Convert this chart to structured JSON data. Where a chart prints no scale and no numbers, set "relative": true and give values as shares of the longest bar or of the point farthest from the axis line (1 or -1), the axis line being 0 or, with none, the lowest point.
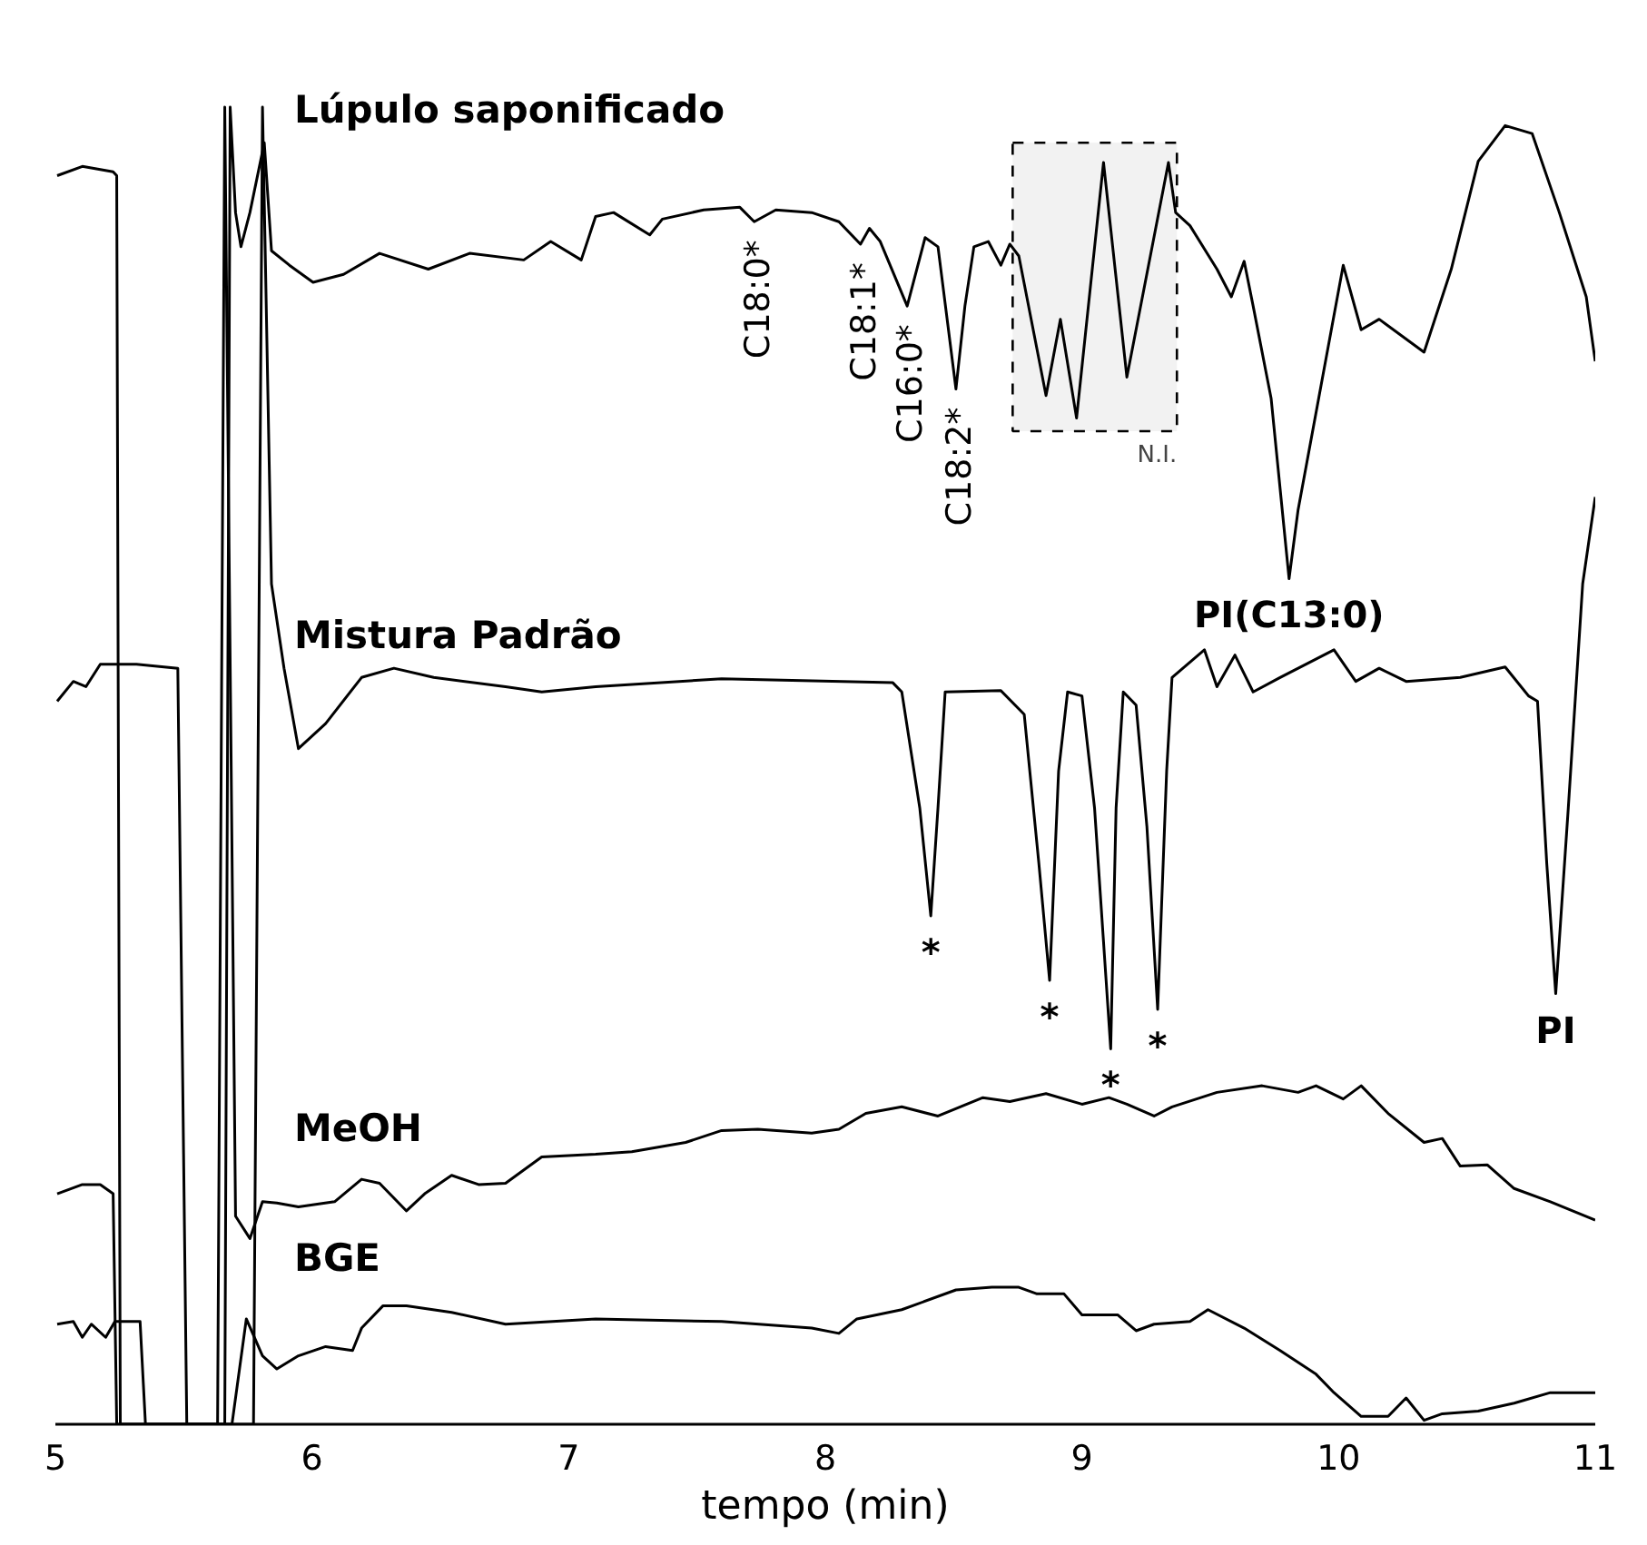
{
  "chart_data": {
    "type": "line",
    "relative": true,
    "xlabel": "tempo (min)",
    "xlim": [
      5,
      11
    ],
    "xticks": [
      5,
      6,
      7,
      8,
      9,
      10,
      11
    ],
    "grid": false,
    "tick_labels": "x",
    "series": [
      {
        "name": "Lúpulo saponificado",
        "color": "#000000",
        "x": [
          5.007,
          5.105,
          5.225,
          5.239,
          5.253,
          5.66,
          5.681,
          5.702,
          5.723,
          5.758,
          5.814,
          5.842,
          5.912,
          6.004,
          6.123,
          6.263,
          6.453,
          6.614,
          6.825,
          6.93,
          7.049,
          7.105,
          7.175,
          7.316,
          7.365,
          7.526,
          7.667,
          7.723,
          7.807,
          7.947,
          8.053,
          8.137,
          8.172,
          8.214,
          8.319,
          8.389,
          8.439,
          8.509,
          8.544,
          8.579,
          8.635,
          8.684,
          8.719,
          8.754,
          8.86,
          8.916,
          8.979,
          9.084,
          9.175,
          9.337,
          9.365,
          9.421,
          9.526,
          9.582,
          9.632,
          9.667,
          9.737,
          9.807,
          9.842,
          10.018,
          10.088,
          10.158,
          10.333,
          10.439,
          10.544,
          10.649,
          10.754,
          10.86,
          10.965,
          11.0
        ],
        "values": [
          0.948,
          0.955,
          0.951,
          0.948,
          0,
          0,
          1.0,
          0.92,
          0.894,
          0.92,
          0.973,
          0.891,
          0.88,
          0.867,
          0.873,
          0.889,
          0.877,
          0.889,
          0.884,
          0.898,
          0.884,
          0.917,
          0.92,
          0.903,
          0.915,
          0.922,
          0.924,
          0.913,
          0.922,
          0.92,
          0.913,
          0.896,
          0.908,
          0.898,
          0.849,
          0.901,
          0.894,
          0.786,
          0.849,
          0.894,
          0.898,
          0.88,
          0.896,
          0.887,
          0.781,
          0.839,
          0.764,
          0.958,
          0.795,
          0.958,
          0.92,
          0.91,
          0.877,
          0.856,
          0.883,
          0.849,
          0.779,
          0.642,
          0.694,
          0.88,
          0.831,
          0.839,
          0.814,
          0.877,
          0.959,
          0.986,
          0.98,
          0.92,
          0.856,
          0.807
        ]
      },
      {
        "name": "Mistura Padrão",
        "color": "#000000",
        "x": [
          5.007,
          5.07,
          5.119,
          5.175,
          5.316,
          5.477,
          5.512,
          5.772,
          5.807,
          5.842,
          5.891,
          5.947,
          6.053,
          6.193,
          6.319,
          6.474,
          6.754,
          6.895,
          7.105,
          7.596,
          8.263,
          8.298,
          8.368,
          8.411,
          8.439,
          8.467,
          8.684,
          8.775,
          8.832,
          8.874,
          8.909,
          8.944,
          9.0,
          9.049,
          9.112,
          9.133,
          9.161,
          9.211,
          9.253,
          9.295,
          9.33,
          9.351,
          9.477,
          9.526,
          9.596,
          9.667,
          9.772,
          9.982,
          10.067,
          10.158,
          10.263,
          10.474,
          10.649,
          10.74,
          10.775,
          10.811,
          10.846,
          10.895,
          10.951,
          11.0
        ],
        "values": [
          0.549,
          0.564,
          0.56,
          0.577,
          0.577,
          0.574,
          0,
          0,
          1.0,
          0.638,
          0.574,
          0.513,
          0.532,
          0.567,
          0.574,
          0.567,
          0.56,
          0.556,
          0.56,
          0.566,
          0.563,
          0.556,
          0.468,
          0.386,
          0.468,
          0.556,
          0.557,
          0.539,
          0.426,
          0.337,
          0.496,
          0.556,
          0.553,
          0.468,
          0.285,
          0.468,
          0.556,
          0.546,
          0.454,
          0.315,
          0.496,
          0.567,
          0.588,
          0.56,
          0.584,
          0.556,
          0.567,
          0.588,
          0.564,
          0.574,
          0.564,
          0.567,
          0.575,
          0.553,
          0.549,
          0.426,
          0.327,
          0.468,
          0.638,
          0.704
        ]
      },
      {
        "name": "MeOH",
        "color": "#000000",
        "x": [
          5.007,
          5.105,
          5.175,
          5.225,
          5.239,
          5.632,
          5.66,
          5.702,
          5.758,
          5.807,
          5.863,
          5.947,
          6.088,
          6.193,
          6.263,
          6.368,
          6.439,
          6.544,
          6.649,
          6.754,
          6.895,
          7.105,
          7.246,
          7.456,
          7.596,
          7.737,
          7.947,
          8.053,
          8.158,
          8.298,
          8.439,
          8.614,
          8.719,
          8.86,
          9.0,
          9.105,
          9.175,
          9.281,
          9.351,
          9.526,
          9.702,
          9.842,
          9.912,
          10.018,
          10.088,
          10.193,
          10.333,
          10.404,
          10.474,
          10.579,
          10.684,
          10.825,
          11.0
        ],
        "values": [
          0.175,
          0.182,
          0.182,
          0.175,
          0,
          0,
          1.0,
          0.158,
          0.141,
          0.169,
          0.168,
          0.165,
          0.169,
          0.186,
          0.183,
          0.162,
          0.175,
          0.189,
          0.182,
          0.183,
          0.203,
          0.205,
          0.207,
          0.214,
          0.223,
          0.224,
          0.221,
          0.224,
          0.236,
          0.241,
          0.234,
          0.248,
          0.245,
          0.251,
          0.243,
          0.248,
          0.243,
          0.234,
          0.241,
          0.252,
          0.257,
          0.252,
          0.257,
          0.247,
          0.257,
          0.236,
          0.214,
          0.217,
          0.196,
          0.197,
          0.179,
          0.169,
          0.155
        ]
      },
      {
        "name": "BGE",
        "color": "#000000",
        "x": [
          5.007,
          5.07,
          5.105,
          5.14,
          5.196,
          5.232,
          5.33,
          5.351,
          5.688,
          5.744,
          5.807,
          5.863,
          5.947,
          6.053,
          6.158,
          6.193,
          6.277,
          6.368,
          6.544,
          6.754,
          7.105,
          7.596,
          7.947,
          8.053,
          8.123,
          8.298,
          8.509,
          8.649,
          8.754,
          8.825,
          8.93,
          9.0,
          9.14,
          9.211,
          9.281,
          9.421,
          9.491,
          9.632,
          9.772,
          9.912,
          9.982,
          10.088,
          10.193,
          10.263,
          10.333,
          10.404,
          10.544,
          10.684,
          10.825,
          11.0
        ],
        "values": [
          0.076,
          0.078,
          0.066,
          0.076,
          0.066,
          0.078,
          0.078,
          0,
          0,
          0.08,
          0.052,
          0.042,
          0.052,
          0.059,
          0.056,
          0.073,
          0.09,
          0.09,
          0.085,
          0.076,
          0.08,
          0.078,
          0.073,
          0.069,
          0.08,
          0.087,
          0.102,
          0.104,
          0.104,
          0.099,
          0.099,
          0.083,
          0.083,
          0.071,
          0.076,
          0.078,
          0.087,
          0.073,
          0.056,
          0.038,
          0.024,
          0.006,
          0.006,
          0.02,
          0.003,
          0.008,
          0.01,
          0.016,
          0.024,
          0.024
        ]
      }
    ],
    "bands": [
      {
        "axis": "x",
        "from": 8.73,
        "to": 9.37,
        "label": "N.I.",
        "color": "#f2f2f2"
      }
    ],
    "annotations": [
      {
        "text": "C18:0*",
        "x": 7.723,
        "y": 0.913
      },
      {
        "text": "C18:1*",
        "x": 8.137,
        "y": 0.896
      },
      {
        "text": "C16:0*",
        "x": 8.319,
        "y": 0.849
      },
      {
        "text": "C18:2*",
        "x": 8.509,
        "y": 0.786
      },
      {
        "text": "*",
        "x": 8.411,
        "y": 0.386
      },
      {
        "text": "*",
        "x": 8.874,
        "y": 0.337
      },
      {
        "text": "*",
        "x": 9.112,
        "y": 0.285
      },
      {
        "text": "*",
        "x": 9.295,
        "y": 0.315
      },
      {
        "text": "PI(C13:0)",
        "x": 9.807,
        "y": 0.642
      },
      {
        "text": "PI",
        "x": 10.846,
        "y": 0.327
      }
    ]
  }
}
